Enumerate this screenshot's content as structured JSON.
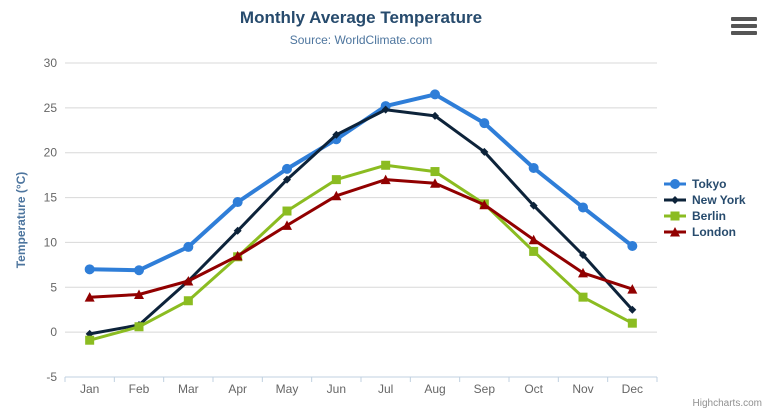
{
  "header": {
    "title": "Monthly Average Temperature",
    "subtitle": "Source: WorldClimate.com"
  },
  "credits": "Highcharts.com",
  "icons": {
    "menu": "hamburger-menu-icon"
  },
  "colors": {
    "title_text": "#274b6d",
    "subtitle_text": "#4d759e",
    "axis_label": "#666666",
    "axis_title": "#4d759e",
    "gridline": "#d8d8d8",
    "axis_line": "#c0d0e0",
    "tick": "#c0d0e0",
    "legend_text": "#274b6d",
    "credits_text": "#909090",
    "menu_icon": "#555555",
    "background": "#ffffff"
  },
  "chart_data": {
    "type": "line",
    "title": "Monthly Average Temperature",
    "subtitle": "Source: WorldClimate.com",
    "categories": [
      "Jan",
      "Feb",
      "Mar",
      "Apr",
      "May",
      "Jun",
      "Jul",
      "Aug",
      "Sep",
      "Oct",
      "Nov",
      "Dec"
    ],
    "xlabel": "",
    "ylabel": "Temperature (°C)",
    "ylim": [
      -5,
      30
    ],
    "yticks": [
      -5,
      0,
      5,
      10,
      15,
      20,
      25,
      30
    ],
    "grid": true,
    "legend_position": "right",
    "series": [
      {
        "name": "Tokyo",
        "color": "#2f7ed8",
        "marker": "circle",
        "marker_radius": 5,
        "line_width": 4,
        "values": [
          7.0,
          6.9,
          9.5,
          14.5,
          18.2,
          21.5,
          25.2,
          26.5,
          23.3,
          18.3,
          13.9,
          9.6
        ]
      },
      {
        "name": "New York",
        "color": "#0d233a",
        "marker": "diamond",
        "marker_radius": 4,
        "line_width": 3,
        "values": [
          -0.2,
          0.8,
          5.7,
          11.3,
          17.0,
          22.0,
          24.8,
          24.1,
          20.1,
          14.1,
          8.6,
          2.5
        ]
      },
      {
        "name": "Berlin",
        "color": "#8bbc21",
        "marker": "square",
        "marker_radius": 4.5,
        "line_width": 3,
        "values": [
          -0.9,
          0.6,
          3.5,
          8.4,
          13.5,
          17.0,
          18.6,
          17.9,
          14.3,
          9.0,
          3.9,
          1.0
        ]
      },
      {
        "name": "London",
        "color": "#910000",
        "marker": "triangle",
        "marker_radius": 5,
        "line_width": 3,
        "values": [
          3.9,
          4.2,
          5.7,
          8.5,
          11.9,
          15.2,
          17.0,
          16.6,
          14.2,
          10.3,
          6.6,
          4.8
        ]
      }
    ]
  }
}
